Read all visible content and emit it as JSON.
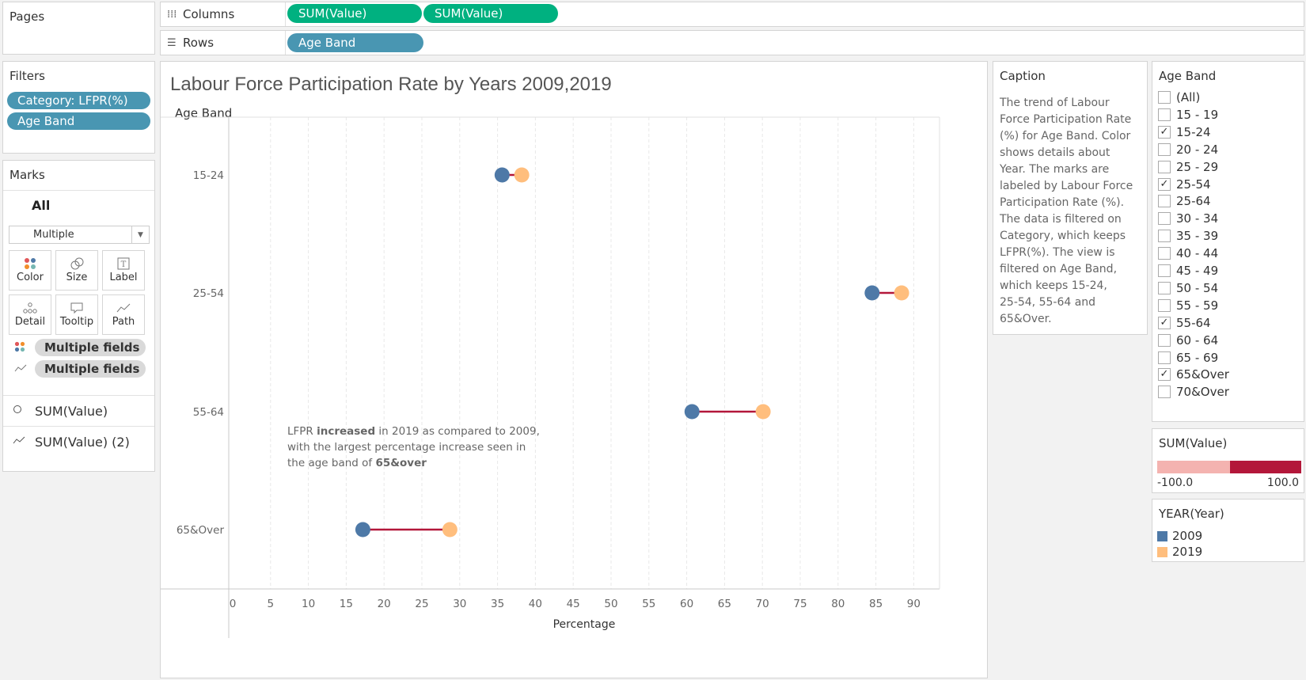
{
  "pages": {
    "title": "Pages"
  },
  "shelves": {
    "columns": {
      "label": "Columns",
      "pills": [
        "SUM(Value)",
        "SUM(Value)"
      ]
    },
    "rows": {
      "label": "Rows",
      "pills": [
        "Age Band"
      ]
    }
  },
  "filters": {
    "title": "Filters",
    "pills": [
      "Category: LFPR(%)",
      "Age Band"
    ]
  },
  "marks": {
    "title": "Marks",
    "all_tab": "All",
    "mark_type": "Multiple",
    "buttons": [
      {
        "label": "Color",
        "icon": "color-icon"
      },
      {
        "label": "Size",
        "icon": "size-icon"
      },
      {
        "label": "Label",
        "icon": "label-icon"
      },
      {
        "label": "Detail",
        "icon": "detail-icon"
      },
      {
        "label": "Tooltip",
        "icon": "tooltip-icon"
      },
      {
        "label": "Path",
        "icon": "path-icon"
      }
    ],
    "fields": [
      "Multiple fields",
      "Multiple fields"
    ],
    "tabs": [
      "SUM(Value)",
      "SUM(Value) (2)"
    ]
  },
  "view": {
    "title": "Labour Force Participation Rate by Years 2009,2019",
    "row_header": "Age Band",
    "annotation": {
      "line1_pre": "LFPR ",
      "line1_bold": "increased",
      "line1_post": " in 2019 as compared to 2009,",
      "line2": "with the largest percentage increase seen in",
      "line3_pre": "the age band of ",
      "line3_bold": "65&over"
    }
  },
  "chart_data": {
    "type": "scatter",
    "subtype": "dumbbell",
    "categories": [
      "15-24",
      "25-54",
      "55-64",
      "65&Over"
    ],
    "series": [
      {
        "name": "2009",
        "color": "#4e79a7",
        "values": [
          35.6,
          84.5,
          60.7,
          17.2
        ]
      },
      {
        "name": "2019",
        "color": "#ffbe7d",
        "values": [
          38.2,
          88.4,
          70.1,
          28.7
        ]
      }
    ],
    "connector_color": "#b3173a",
    "xlabel": "Percentage",
    "ylabel": "Age Band",
    "xlim": [
      0,
      93
    ],
    "xticks": [
      0,
      5,
      10,
      15,
      20,
      25,
      30,
      35,
      40,
      45,
      50,
      55,
      60,
      65,
      70,
      75,
      80,
      85,
      90
    ],
    "grid": true
  },
  "caption": {
    "title": "Caption",
    "lines": [
      "The trend of Labour",
      "Force Participation Rate",
      "(%) for Age Band.  Color",
      "shows details about",
      "Year.  The marks are",
      "labeled by Labour Force",
      "Participation Rate (%).",
      "The data is filtered on",
      "Category, which keeps",
      "LFPR(%). The view is",
      "filtered on Age Band,",
      "which keeps 15-24,",
      "25-54, 55-64 and",
      "65&Over."
    ]
  },
  "age_band_filter": {
    "title": "Age Band",
    "items": [
      {
        "label": "(All)",
        "checked": false
      },
      {
        "label": "15 - 19",
        "checked": false
      },
      {
        "label": "15-24",
        "checked": true
      },
      {
        "label": "20 - 24",
        "checked": false
      },
      {
        "label": "25 - 29",
        "checked": false
      },
      {
        "label": "25-54",
        "checked": true
      },
      {
        "label": "25-64",
        "checked": false
      },
      {
        "label": "30 - 34",
        "checked": false
      },
      {
        "label": "35 - 39",
        "checked": false
      },
      {
        "label": "40 - 44",
        "checked": false
      },
      {
        "label": "45 - 49",
        "checked": false
      },
      {
        "label": "50 - 54",
        "checked": false
      },
      {
        "label": "55 - 59",
        "checked": false
      },
      {
        "label": "55-64",
        "checked": true
      },
      {
        "label": "60 - 64",
        "checked": false
      },
      {
        "label": "65 - 69",
        "checked": false
      },
      {
        "label": "65&Over",
        "checked": true
      },
      {
        "label": "70&Over",
        "checked": false
      }
    ]
  },
  "sum_legend": {
    "title": "SUM(Value)",
    "min": "-100.0",
    "max": "100.0",
    "low_color": "#f4b3b0",
    "high_color": "#b3173a"
  },
  "year_legend": {
    "title": "YEAR(Year)",
    "items": [
      {
        "label": "2009",
        "color": "#4e79a7"
      },
      {
        "label": "2019",
        "color": "#ffbe7d"
      }
    ]
  }
}
